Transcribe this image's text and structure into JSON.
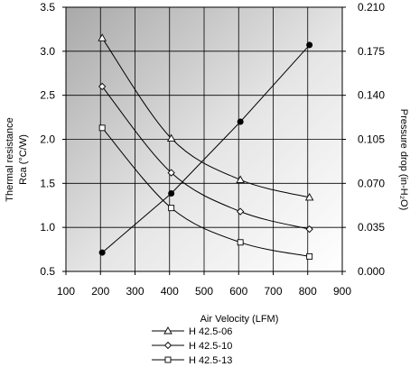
{
  "chart_data": {
    "type": "line",
    "title": "",
    "xlabel": "Air Velocity (LFM)",
    "ylabel_left": [
      "Thermal resistance",
      "Rca (°C/W)"
    ],
    "ylabel_right": "Pressure drop (in-H₂O)",
    "xlim": [
      100,
      900
    ],
    "ylim_left": [
      0.5,
      3.5
    ],
    "ylim_right": [
      0.0,
      0.21
    ],
    "x_ticks": [
      "100",
      "200",
      "300",
      "400",
      "500",
      "600",
      "700",
      "800",
      "900"
    ],
    "y_left_ticks": [
      "0.5",
      "1.0",
      "1.5",
      "2.0",
      "2.5",
      "3.0",
      "3.5"
    ],
    "y_right_ticks": [
      "0.000",
      "0.035",
      "0.070",
      "0.105",
      "0.140",
      "0.175",
      "0.210"
    ],
    "grid": true,
    "background": "gradient-gray",
    "series": [
      {
        "name": "H 42.5-06",
        "axis": "left",
        "marker": "triangle",
        "x": [
          205,
          405,
          605,
          805
        ],
        "y": [
          3.15,
          2.01,
          1.54,
          1.34
        ]
      },
      {
        "name": "H 42.5-10",
        "axis": "left",
        "marker": "diamond",
        "x": [
          205,
          405,
          605,
          805
        ],
        "y": [
          2.6,
          1.62,
          1.18,
          0.98
        ]
      },
      {
        "name": "H 42.5-13",
        "axis": "left",
        "marker": "square",
        "x": [
          205,
          405,
          605,
          805
        ],
        "y": [
          2.13,
          1.22,
          0.83,
          0.67
        ]
      },
      {
        "axis": "right",
        "marker": "filled-circle",
        "x": [
          205,
          405,
          605,
          805
        ],
        "y": [
          0.015,
          0.062,
          0.119,
          0.18
        ]
      }
    ],
    "legend": [
      "H 42.5-06",
      "H 42.5-10",
      "H 42.5-13"
    ],
    "legend_position": "bottom"
  }
}
